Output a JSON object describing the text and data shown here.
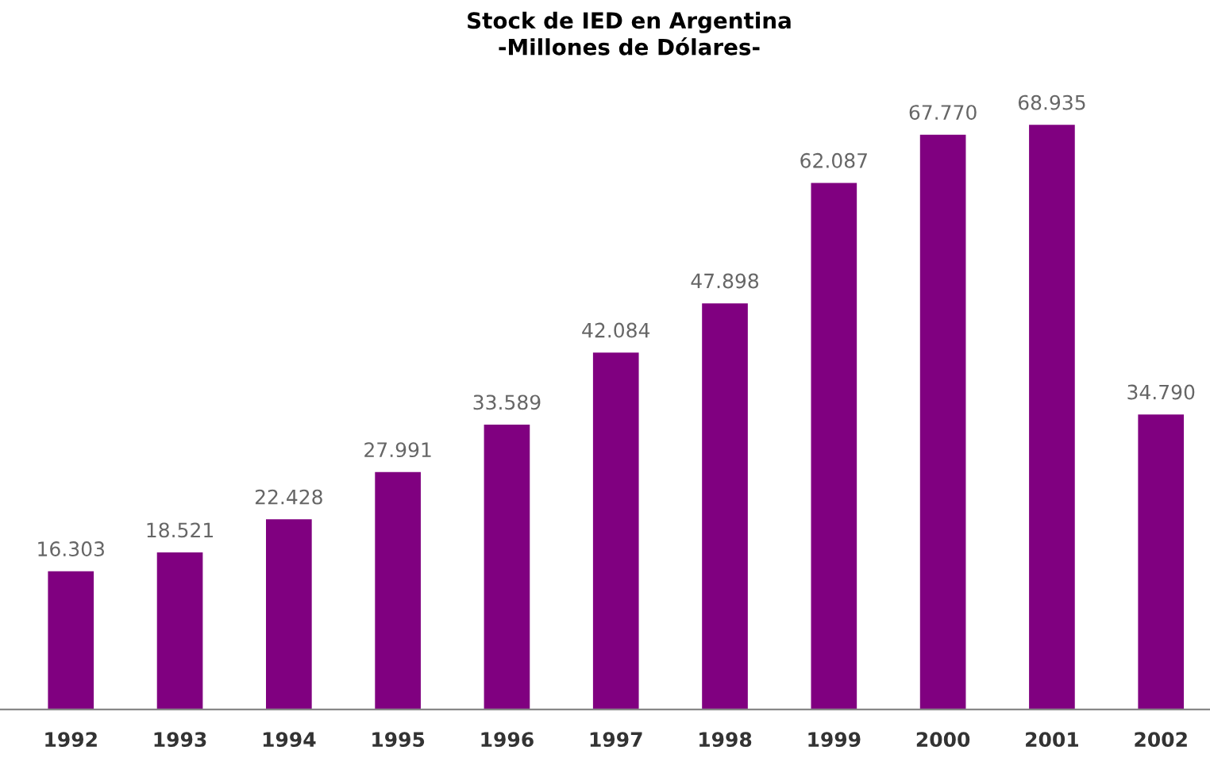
{
  "chart_data": {
    "type": "bar",
    "title": "Stock de IED en Argentina\n-Millones de Dólares-",
    "categories": [
      "1992",
      "1993",
      "1994",
      "1995",
      "1996",
      "1997",
      "1998",
      "1999",
      "2000",
      "2001",
      "2002"
    ],
    "values": [
      16303,
      18521,
      22428,
      27991,
      33589,
      42084,
      47898,
      62087,
      67770,
      68935,
      34790
    ],
    "value_labels": [
      "16.303",
      "18.521",
      "22.428",
      "27.991",
      "33.589",
      "42.084",
      "47.898",
      "62.087",
      "67.770",
      "68.935",
      "34.790"
    ],
    "color": "#800080",
    "grid": false,
    "legend": false
  }
}
